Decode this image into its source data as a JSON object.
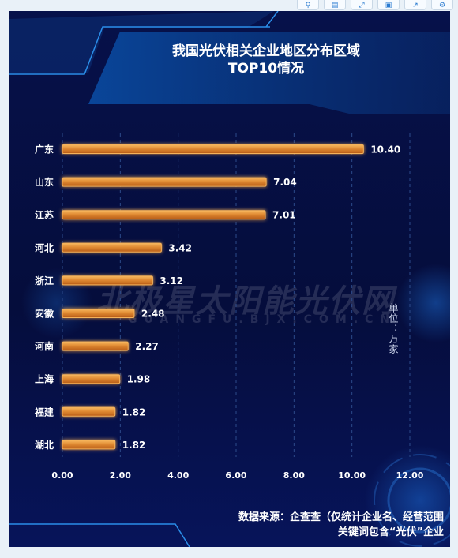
{
  "toolbar": {
    "icons": [
      "zoom-icon",
      "data-view-icon",
      "restore-icon",
      "save-image-icon",
      "export-icon",
      "settings-icon"
    ]
  },
  "header": {
    "title_line1": "我国光伏相关企业地区分布区域",
    "title_line2": "TOP10情况"
  },
  "watermark": {
    "text": "北极星太阳能光伏网",
    "sub": "GUANGFU.BJX.COM.CN"
  },
  "unit_label": "单位：万家",
  "source": {
    "line1": "数据来源：企查查（仅统计企业名、经营范围",
    "line2": "关键词包含“光伏”企业"
  },
  "colors": {
    "background": "#050d3c",
    "bar": "#d8792a",
    "bar_highlight": "#f5b25a",
    "text": "#ffffff",
    "grid": "#2c4a8a"
  },
  "chart_data": {
    "type": "bar",
    "orientation": "horizontal",
    "categories": [
      "广东",
      "山东",
      "江苏",
      "河北",
      "浙江",
      "安徽",
      "河南",
      "上海",
      "福建",
      "湖北"
    ],
    "values": [
      10.4,
      7.04,
      7.01,
      3.42,
      3.12,
      2.48,
      2.27,
      1.98,
      1.82,
      1.82
    ],
    "value_labels": [
      "10.40",
      "7.04",
      "7.01",
      "3.42",
      "3.12",
      "2.48",
      "2.27",
      "1.98",
      "1.82",
      "1.82"
    ],
    "xlim": [
      0,
      12
    ],
    "xticks": [
      0,
      2,
      4,
      6,
      8,
      10,
      12
    ],
    "xtick_labels": [
      "0.00",
      "2.00",
      "4.00",
      "6.00",
      "8.00",
      "10.00",
      "12.00"
    ],
    "grid": true,
    "grid_style": "dashed vertical"
  }
}
